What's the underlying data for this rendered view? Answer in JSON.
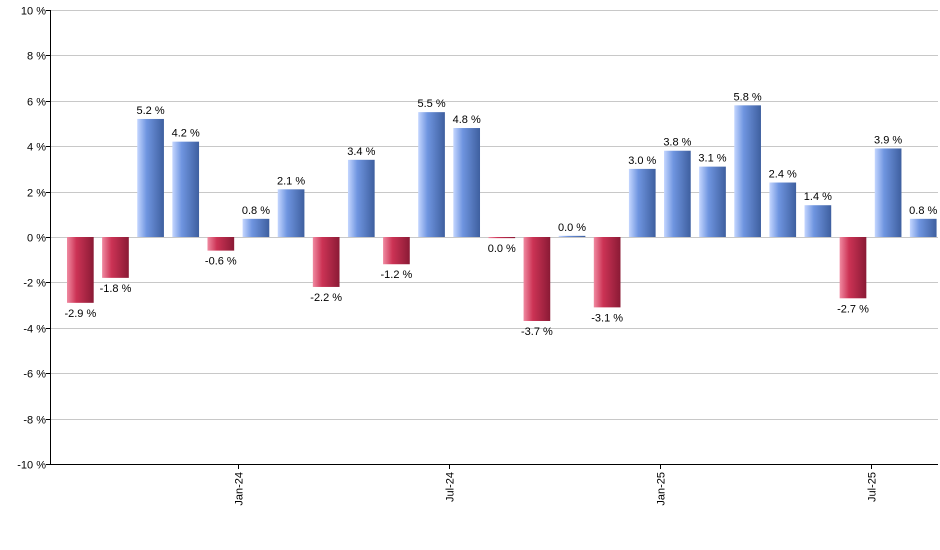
{
  "chart_data": {
    "type": "bar",
    "title": "",
    "xlabel": "",
    "ylabel": "",
    "ylim": [
      -10,
      10
    ],
    "yticks": [
      10,
      8,
      6,
      4,
      2,
      0,
      -2,
      -4,
      -6,
      -8,
      -10
    ],
    "ytick_labels": [
      "10 %",
      "8 %",
      "6 %",
      "4 %",
      "2 %",
      "0 %",
      "-2 %",
      "-4 %",
      "-6 %",
      "-8 %",
      "-10 %"
    ],
    "grid": true,
    "legend": "none",
    "values": [
      -2.9,
      -1.8,
      5.2,
      4.2,
      -0.6,
      0.8,
      2.1,
      -2.2,
      3.4,
      -1.2,
      5.5,
      4.8,
      -0.05,
      -3.7,
      0.05,
      -3.1,
      3.0,
      3.8,
      3.1,
      5.8,
      2.4,
      1.4,
      -2.7,
      3.9,
      0.8
    ],
    "value_labels": [
      "-2.9 %",
      "-1.8 %",
      "5.2 %",
      "4.2 %",
      "-0.6 %",
      "0.8 %",
      "2.1 %",
      "-2.2 %",
      "3.4 %",
      "-1.2 %",
      "5.5 %",
      "4.8 %",
      "0.0 %",
      "-3.7 %",
      "0.0 %",
      "-3.1 %",
      "3.0 %",
      "3.8 %",
      "3.1 %",
      "5.8 %",
      "2.4 %",
      "1.4 %",
      "-2.7 %",
      "3.9 %",
      "0.8 %"
    ],
    "x_ticks": [
      {
        "label": "Jan-24",
        "after_bar_index": 4
      },
      {
        "label": "Jul-24",
        "after_bar_index": 10
      },
      {
        "label": "Jan-25",
        "after_bar_index": 16
      },
      {
        "label": "Jul-25",
        "after_bar_index": 22
      }
    ],
    "colors": {
      "positive": "#6f95e0",
      "positive_light": "#c4d6ff",
      "positive_dark": "#3e5f9f",
      "negative": "#cc3355",
      "negative_light": "#f08aa1",
      "negative_dark": "#8a1a35",
      "grid": "#c8c8c8",
      "axis": "#000000"
    }
  }
}
